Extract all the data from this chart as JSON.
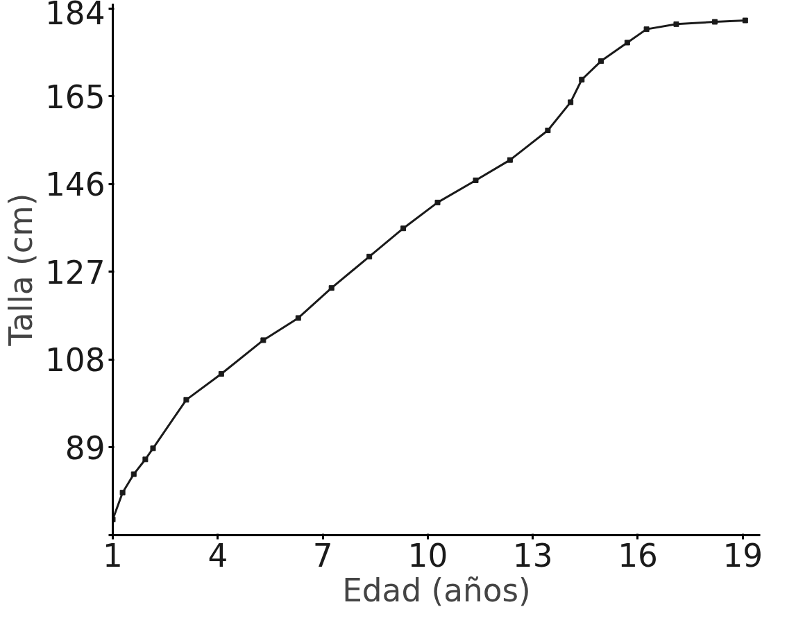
{
  "chart_data": {
    "type": "line",
    "xlabel": "Edad (años)",
    "ylabel": "Talla (cm)",
    "x": [
      1,
      1.28,
      1.6,
      1.93,
      2.15,
      3.1,
      4.1,
      5.3,
      6.3,
      7.25,
      8.33,
      9.3,
      10.28,
      11.37,
      12.35,
      13.43,
      14.08,
      14.4,
      14.95,
      15.7,
      16.25,
      17.1,
      18.2,
      19.07
    ],
    "series": [
      {
        "color": "#1a1a1a",
        "values": [
          73.4,
          79.2,
          83.2,
          86.4,
          88.8,
          99.3,
          104.9,
          112.2,
          117,
          123.5,
          130.3,
          136.4,
          142,
          146.8,
          151.2,
          157.6,
          163.7,
          168.6,
          172.6,
          176.6,
          179.5,
          180.6,
          181.1,
          181.4
        ]
      }
    ],
    "xlim": [
      1,
      19.5
    ],
    "ylim": [
      70,
      185
    ],
    "xticks": [
      1,
      4,
      7,
      10,
      13,
      16,
      19
    ],
    "yticks": [
      {
        "value": 70,
        "label": null
      },
      89,
      108,
      127,
      146,
      165,
      184
    ],
    "grid": false,
    "marker": "square",
    "line_style": "solid"
  }
}
